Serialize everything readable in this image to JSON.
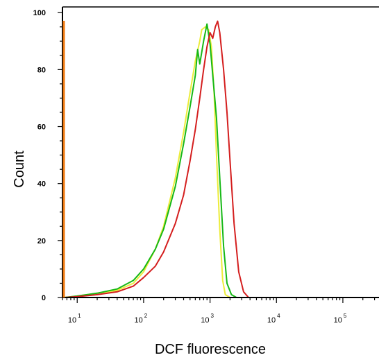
{
  "chart_data": {
    "type": "line",
    "title": "",
    "xlabel": "DCF fluorescence",
    "ylabel": "Count",
    "xscale": "log",
    "xlim": [
      6,
      350000
    ],
    "ylim": [
      0,
      102
    ],
    "grid": false,
    "legend": "none",
    "yticks": [
      0,
      20,
      40,
      60,
      80,
      100
    ],
    "xticks": [
      {
        "value": 10,
        "base": "10",
        "exp": "1"
      },
      {
        "value": 100,
        "base": "10",
        "exp": "2"
      },
      {
        "value": 1000,
        "base": "10",
        "exp": "3"
      },
      {
        "value": 10000,
        "base": "10",
        "exp": "4"
      },
      {
        "value": 100000,
        "base": "10",
        "exp": "5"
      }
    ],
    "series": [
      {
        "color": "#ecec3a",
        "points": [
          [
            6.5,
            0
          ],
          [
            10,
            0.5
          ],
          [
            20,
            1.5
          ],
          [
            40,
            2.5
          ],
          [
            70,
            5
          ],
          [
            100,
            9
          ],
          [
            150,
            17
          ],
          [
            200,
            25
          ],
          [
            300,
            42
          ],
          [
            400,
            58
          ],
          [
            500,
            72
          ],
          [
            600,
            83
          ],
          [
            700,
            90
          ],
          [
            750,
            94
          ],
          [
            850,
            95
          ],
          [
            950,
            94
          ],
          [
            1050,
            88
          ],
          [
            1150,
            72
          ],
          [
            1250,
            50
          ],
          [
            1400,
            24
          ],
          [
            1550,
            6
          ],
          [
            1700,
            1
          ],
          [
            2000,
            0
          ],
          [
            300000,
            0
          ]
        ]
      },
      {
        "color": "#16b816",
        "points": [
          [
            6.5,
            0
          ],
          [
            10,
            0.5
          ],
          [
            20,
            1.5
          ],
          [
            40,
            3
          ],
          [
            70,
            6
          ],
          [
            100,
            10
          ],
          [
            150,
            17
          ],
          [
            200,
            24
          ],
          [
            300,
            39
          ],
          [
            400,
            54
          ],
          [
            500,
            67
          ],
          [
            600,
            78
          ],
          [
            650,
            87
          ],
          [
            700,
            82
          ],
          [
            800,
            90
          ],
          [
            900,
            96
          ],
          [
            1000,
            89
          ],
          [
            1100,
            78
          ],
          [
            1250,
            63
          ],
          [
            1400,
            42
          ],
          [
            1600,
            18
          ],
          [
            1800,
            5
          ],
          [
            2100,
            1
          ],
          [
            2500,
            0
          ],
          [
            300000,
            0
          ]
        ]
      },
      {
        "color": "#d41e1e",
        "points": [
          [
            6.5,
            0
          ],
          [
            10,
            0.3
          ],
          [
            20,
            1
          ],
          [
            40,
            2
          ],
          [
            70,
            4
          ],
          [
            100,
            7
          ],
          [
            150,
            11
          ],
          [
            200,
            16
          ],
          [
            300,
            26
          ],
          [
            400,
            36
          ],
          [
            500,
            48
          ],
          [
            600,
            59
          ],
          [
            700,
            70
          ],
          [
            800,
            80
          ],
          [
            900,
            88
          ],
          [
            1000,
            93
          ],
          [
            1100,
            91
          ],
          [
            1200,
            95
          ],
          [
            1300,
            97
          ],
          [
            1400,
            93
          ],
          [
            1600,
            80
          ],
          [
            1800,
            65
          ],
          [
            2000,
            48
          ],
          [
            2300,
            26
          ],
          [
            2700,
            9
          ],
          [
            3200,
            2
          ],
          [
            3800,
            0
          ],
          [
            300000,
            0
          ]
        ]
      }
    ]
  }
}
